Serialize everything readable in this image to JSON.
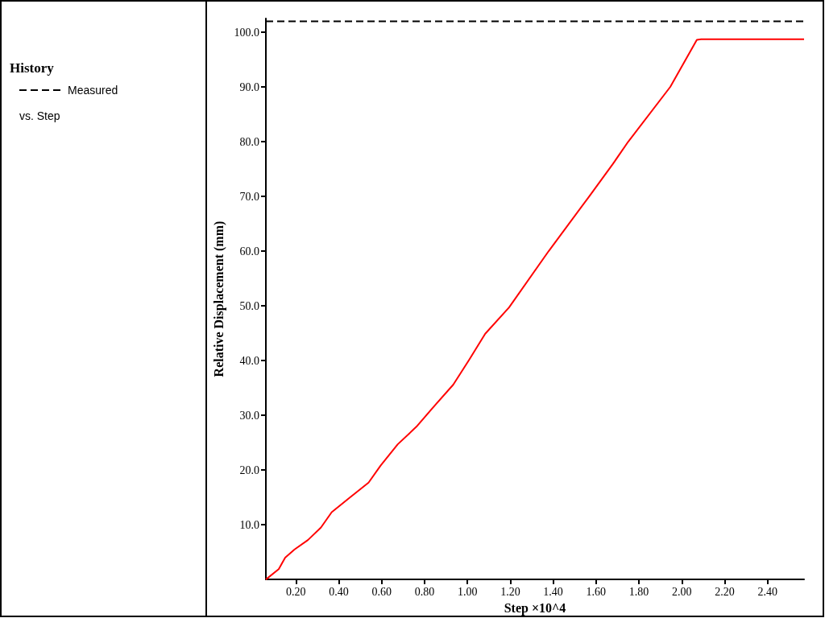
{
  "chart_data": {
    "type": "line",
    "xlabel": "Step ×10^4",
    "ylabel": "Relative Displacement (mm)",
    "legend_title": "History",
    "annotations": [
      "vs. Step"
    ],
    "xlim": [
      0.06,
      2.57
    ],
    "ylim": [
      0,
      102.5
    ],
    "xticks": [
      {
        "value": 0.2,
        "label": "0.20"
      },
      {
        "value": 0.4,
        "label": "0.40"
      },
      {
        "value": 0.6,
        "label": "0.60"
      },
      {
        "value": 0.8,
        "label": "0.80"
      },
      {
        "value": 1.0,
        "label": "1.00"
      },
      {
        "value": 1.2,
        "label": "1.20"
      },
      {
        "value": 1.4,
        "label": "1.40"
      },
      {
        "value": 1.6,
        "label": "1.60"
      },
      {
        "value": 1.8,
        "label": "1.80"
      },
      {
        "value": 2.0,
        "label": "2.00"
      },
      {
        "value": 2.2,
        "label": "2.20"
      },
      {
        "value": 2.4,
        "label": "2.40"
      }
    ],
    "yticks": [
      {
        "value": 10,
        "label": "10.0"
      },
      {
        "value": 20,
        "label": "20.0"
      },
      {
        "value": 30,
        "label": "30.0"
      },
      {
        "value": 40,
        "label": "40.0"
      },
      {
        "value": 50,
        "label": "50.0"
      },
      {
        "value": 60,
        "label": "60.0"
      },
      {
        "value": 70,
        "label": "70.0"
      },
      {
        "value": 80,
        "label": "80.0"
      },
      {
        "value": 90,
        "label": "90.0"
      },
      {
        "value": 100,
        "label": "100.0"
      }
    ],
    "grid": false,
    "legend": "left",
    "marker": "none",
    "series": [
      {
        "color": "#ff0000",
        "line_style": "solid",
        "x": [
          0.06,
          0.12,
          0.15,
          0.194,
          0.256,
          0.317,
          0.367,
          0.453,
          0.539,
          0.595,
          0.675,
          0.762,
          0.848,
          0.934,
          1.009,
          1.083,
          1.194,
          1.379,
          1.568,
          1.678,
          1.75,
          1.946,
          2.07,
          2.09,
          2.57
        ],
        "values": [
          0,
          1.9,
          4.0,
          5.5,
          7.2,
          9.5,
          12.3,
          15.0,
          17.7,
          20.8,
          24.7,
          27.9,
          31.8,
          35.6,
          40.2,
          44.9,
          49.7,
          60,
          70,
          75.9,
          80,
          90,
          98.6,
          98.7,
          98.7
        ]
      },
      {
        "name": "Measured",
        "color": "#000000",
        "line_style": "dashed",
        "x": [
          0.06,
          2.57
        ],
        "values": [
          102,
          102
        ]
      }
    ]
  }
}
